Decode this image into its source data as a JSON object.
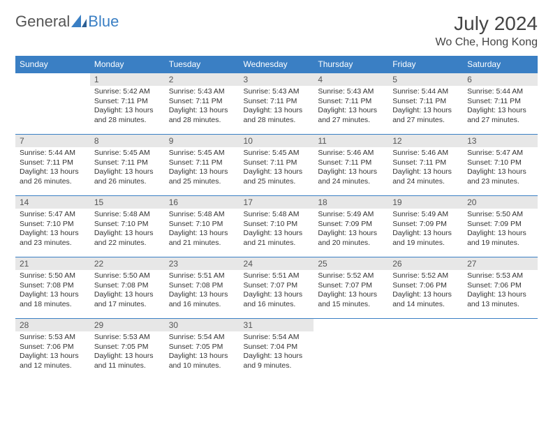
{
  "brand": {
    "part1": "General",
    "part2": "Blue"
  },
  "title": "July 2024",
  "location": "Wo Che, Hong Kong",
  "colors": {
    "header_bg": "#3a7fc4",
    "header_text": "#ffffff",
    "daynum_bg": "#e7e7e7",
    "border": "#3a7fc4",
    "text": "#333333",
    "background": "#ffffff"
  },
  "weekdays": [
    "Sunday",
    "Monday",
    "Tuesday",
    "Wednesday",
    "Thursday",
    "Friday",
    "Saturday"
  ],
  "weeks": [
    [
      {
        "empty": true
      },
      {
        "day": "1",
        "sunrise": "Sunrise: 5:42 AM",
        "sunset": "Sunset: 7:11 PM",
        "daylight1": "Daylight: 13 hours",
        "daylight2": "and 28 minutes."
      },
      {
        "day": "2",
        "sunrise": "Sunrise: 5:43 AM",
        "sunset": "Sunset: 7:11 PM",
        "daylight1": "Daylight: 13 hours",
        "daylight2": "and 28 minutes."
      },
      {
        "day": "3",
        "sunrise": "Sunrise: 5:43 AM",
        "sunset": "Sunset: 7:11 PM",
        "daylight1": "Daylight: 13 hours",
        "daylight2": "and 28 minutes."
      },
      {
        "day": "4",
        "sunrise": "Sunrise: 5:43 AM",
        "sunset": "Sunset: 7:11 PM",
        "daylight1": "Daylight: 13 hours",
        "daylight2": "and 27 minutes."
      },
      {
        "day": "5",
        "sunrise": "Sunrise: 5:44 AM",
        "sunset": "Sunset: 7:11 PM",
        "daylight1": "Daylight: 13 hours",
        "daylight2": "and 27 minutes."
      },
      {
        "day": "6",
        "sunrise": "Sunrise: 5:44 AM",
        "sunset": "Sunset: 7:11 PM",
        "daylight1": "Daylight: 13 hours",
        "daylight2": "and 27 minutes."
      }
    ],
    [
      {
        "day": "7",
        "sunrise": "Sunrise: 5:44 AM",
        "sunset": "Sunset: 7:11 PM",
        "daylight1": "Daylight: 13 hours",
        "daylight2": "and 26 minutes."
      },
      {
        "day": "8",
        "sunrise": "Sunrise: 5:45 AM",
        "sunset": "Sunset: 7:11 PM",
        "daylight1": "Daylight: 13 hours",
        "daylight2": "and 26 minutes."
      },
      {
        "day": "9",
        "sunrise": "Sunrise: 5:45 AM",
        "sunset": "Sunset: 7:11 PM",
        "daylight1": "Daylight: 13 hours",
        "daylight2": "and 25 minutes."
      },
      {
        "day": "10",
        "sunrise": "Sunrise: 5:45 AM",
        "sunset": "Sunset: 7:11 PM",
        "daylight1": "Daylight: 13 hours",
        "daylight2": "and 25 minutes."
      },
      {
        "day": "11",
        "sunrise": "Sunrise: 5:46 AM",
        "sunset": "Sunset: 7:11 PM",
        "daylight1": "Daylight: 13 hours",
        "daylight2": "and 24 minutes."
      },
      {
        "day": "12",
        "sunrise": "Sunrise: 5:46 AM",
        "sunset": "Sunset: 7:11 PM",
        "daylight1": "Daylight: 13 hours",
        "daylight2": "and 24 minutes."
      },
      {
        "day": "13",
        "sunrise": "Sunrise: 5:47 AM",
        "sunset": "Sunset: 7:10 PM",
        "daylight1": "Daylight: 13 hours",
        "daylight2": "and 23 minutes."
      }
    ],
    [
      {
        "day": "14",
        "sunrise": "Sunrise: 5:47 AM",
        "sunset": "Sunset: 7:10 PM",
        "daylight1": "Daylight: 13 hours",
        "daylight2": "and 23 minutes."
      },
      {
        "day": "15",
        "sunrise": "Sunrise: 5:48 AM",
        "sunset": "Sunset: 7:10 PM",
        "daylight1": "Daylight: 13 hours",
        "daylight2": "and 22 minutes."
      },
      {
        "day": "16",
        "sunrise": "Sunrise: 5:48 AM",
        "sunset": "Sunset: 7:10 PM",
        "daylight1": "Daylight: 13 hours",
        "daylight2": "and 21 minutes."
      },
      {
        "day": "17",
        "sunrise": "Sunrise: 5:48 AM",
        "sunset": "Sunset: 7:10 PM",
        "daylight1": "Daylight: 13 hours",
        "daylight2": "and 21 minutes."
      },
      {
        "day": "18",
        "sunrise": "Sunrise: 5:49 AM",
        "sunset": "Sunset: 7:09 PM",
        "daylight1": "Daylight: 13 hours",
        "daylight2": "and 20 minutes."
      },
      {
        "day": "19",
        "sunrise": "Sunrise: 5:49 AM",
        "sunset": "Sunset: 7:09 PM",
        "daylight1": "Daylight: 13 hours",
        "daylight2": "and 19 minutes."
      },
      {
        "day": "20",
        "sunrise": "Sunrise: 5:50 AM",
        "sunset": "Sunset: 7:09 PM",
        "daylight1": "Daylight: 13 hours",
        "daylight2": "and 19 minutes."
      }
    ],
    [
      {
        "day": "21",
        "sunrise": "Sunrise: 5:50 AM",
        "sunset": "Sunset: 7:08 PM",
        "daylight1": "Daylight: 13 hours",
        "daylight2": "and 18 minutes."
      },
      {
        "day": "22",
        "sunrise": "Sunrise: 5:50 AM",
        "sunset": "Sunset: 7:08 PM",
        "daylight1": "Daylight: 13 hours",
        "daylight2": "and 17 minutes."
      },
      {
        "day": "23",
        "sunrise": "Sunrise: 5:51 AM",
        "sunset": "Sunset: 7:08 PM",
        "daylight1": "Daylight: 13 hours",
        "daylight2": "and 16 minutes."
      },
      {
        "day": "24",
        "sunrise": "Sunrise: 5:51 AM",
        "sunset": "Sunset: 7:07 PM",
        "daylight1": "Daylight: 13 hours",
        "daylight2": "and 16 minutes."
      },
      {
        "day": "25",
        "sunrise": "Sunrise: 5:52 AM",
        "sunset": "Sunset: 7:07 PM",
        "daylight1": "Daylight: 13 hours",
        "daylight2": "and 15 minutes."
      },
      {
        "day": "26",
        "sunrise": "Sunrise: 5:52 AM",
        "sunset": "Sunset: 7:06 PM",
        "daylight1": "Daylight: 13 hours",
        "daylight2": "and 14 minutes."
      },
      {
        "day": "27",
        "sunrise": "Sunrise: 5:53 AM",
        "sunset": "Sunset: 7:06 PM",
        "daylight1": "Daylight: 13 hours",
        "daylight2": "and 13 minutes."
      }
    ],
    [
      {
        "day": "28",
        "sunrise": "Sunrise: 5:53 AM",
        "sunset": "Sunset: 7:06 PM",
        "daylight1": "Daylight: 13 hours",
        "daylight2": "and 12 minutes."
      },
      {
        "day": "29",
        "sunrise": "Sunrise: 5:53 AM",
        "sunset": "Sunset: 7:05 PM",
        "daylight1": "Daylight: 13 hours",
        "daylight2": "and 11 minutes."
      },
      {
        "day": "30",
        "sunrise": "Sunrise: 5:54 AM",
        "sunset": "Sunset: 7:05 PM",
        "daylight1": "Daylight: 13 hours",
        "daylight2": "and 10 minutes."
      },
      {
        "day": "31",
        "sunrise": "Sunrise: 5:54 AM",
        "sunset": "Sunset: 7:04 PM",
        "daylight1": "Daylight: 13 hours",
        "daylight2": "and 9 minutes."
      },
      {
        "empty": true
      },
      {
        "empty": true
      },
      {
        "empty": true
      }
    ]
  ]
}
